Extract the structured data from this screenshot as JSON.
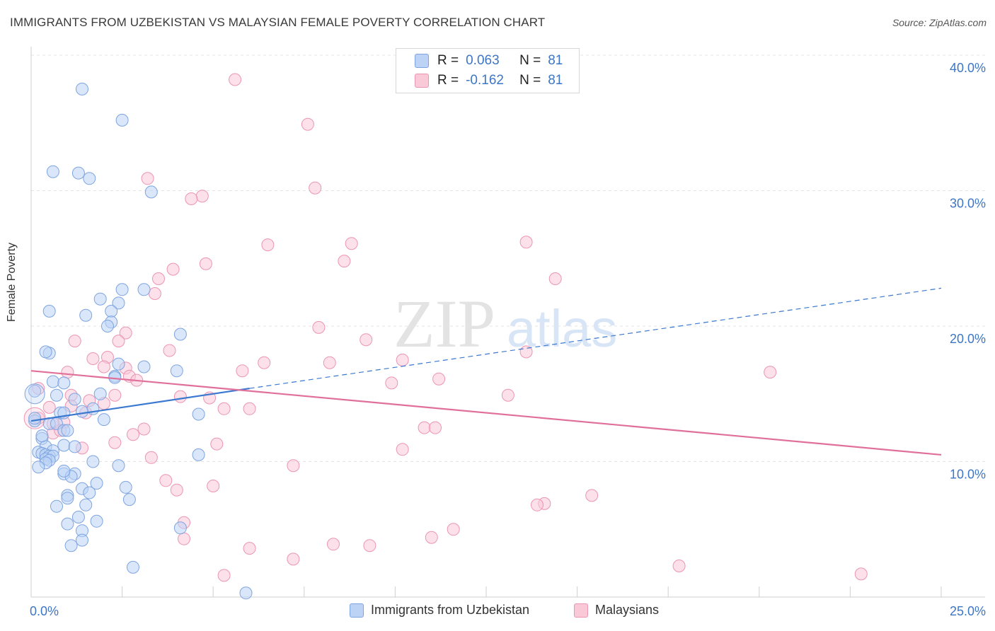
{
  "title": "IMMIGRANTS FROM UZBEKISTAN VS MALAYSIAN FEMALE POVERTY CORRELATION CHART",
  "source": "Source: ZipAtlas.com",
  "watermark": {
    "zip": "ZIP",
    "atlas": "atlas"
  },
  "legend": {
    "r_label": "R =",
    "n_label": "N =",
    "rows": [
      {
        "r_value": "0.063",
        "n_value": "81",
        "fill": "#bcd3f5",
        "stroke": "#7ea4e0"
      },
      {
        "r_value": "-0.162",
        "n_value": "81",
        "fill": "#f9c9d8",
        "stroke": "#eb95b3"
      }
    ]
  },
  "chart_data": {
    "type": "scatter",
    "ylabel": "Female Poverty",
    "xlim": [
      0,
      25
    ],
    "ylim": [
      0,
      40
    ],
    "x_tick_labels": [
      "0.0%",
      "25.0%"
    ],
    "y_ticks": [
      10,
      20,
      30,
      40
    ],
    "y_tick_labels": [
      "10.0%",
      "20.0%",
      "30.0%",
      "40.0%"
    ],
    "grid": true,
    "colors": {
      "blue": "#7ea4e0",
      "blue_fill": "#bcd3f5",
      "blue_line": "#3b78d0",
      "pink": "#eb95b3",
      "pink_fill": "#f9c9d8",
      "pink_line": "#e0709a",
      "axis_text": "#3d76c5"
    },
    "series": [
      {
        "name": "Immigrants from Uzbekistan",
        "color": "#7ea4e0",
        "trend": {
          "x0": 0,
          "y0": 13.0,
          "x1": 6.0,
          "y1": 15.4,
          "x_end": 25,
          "y_end": 22.8
        },
        "points": [
          [
            1.4,
            37.5
          ],
          [
            2.5,
            35.2
          ],
          [
            0.6,
            31.4
          ],
          [
            1.3,
            31.3
          ],
          [
            1.6,
            30.9
          ],
          [
            3.3,
            29.9
          ],
          [
            0.1,
            15.2
          ],
          [
            0.5,
            18.0
          ],
          [
            0.4,
            18.1
          ],
          [
            1.9,
            22.0
          ],
          [
            2.5,
            22.7
          ],
          [
            3.1,
            22.7
          ],
          [
            2.4,
            21.7
          ],
          [
            0.5,
            21.1
          ],
          [
            2.2,
            21.1
          ],
          [
            1.5,
            20.8
          ],
          [
            2.2,
            20.3
          ],
          [
            2.1,
            20.0
          ],
          [
            4.1,
            19.4
          ],
          [
            2.4,
            17.2
          ],
          [
            3.1,
            17.0
          ],
          [
            4.0,
            16.7
          ],
          [
            2.3,
            16.3
          ],
          [
            0.6,
            15.9
          ],
          [
            0.9,
            15.8
          ],
          [
            1.9,
            15.0
          ],
          [
            0.7,
            14.9
          ],
          [
            1.2,
            14.6
          ],
          [
            1.7,
            13.9
          ],
          [
            1.4,
            13.7
          ],
          [
            0.8,
            13.6
          ],
          [
            4.6,
            13.5
          ],
          [
            0.9,
            13.6
          ],
          [
            2.0,
            13.1
          ],
          [
            0.1,
            13.0
          ],
          [
            0.5,
            12.8
          ],
          [
            0.7,
            12.8
          ],
          [
            0.9,
            12.3
          ],
          [
            1.0,
            12.3
          ],
          [
            0.3,
            11.7
          ],
          [
            0.4,
            11.1
          ],
          [
            0.9,
            11.2
          ],
          [
            1.2,
            11.1
          ],
          [
            0.6,
            10.8
          ],
          [
            0.2,
            10.7
          ],
          [
            0.3,
            10.6
          ],
          [
            0.4,
            10.5
          ],
          [
            0.5,
            10.4
          ],
          [
            0.6,
            10.4
          ],
          [
            0.4,
            10.2
          ],
          [
            0.5,
            10.1
          ],
          [
            0.4,
            9.9
          ],
          [
            4.6,
            10.5
          ],
          [
            1.7,
            10.0
          ],
          [
            0.2,
            9.6
          ],
          [
            2.4,
            9.7
          ],
          [
            0.9,
            9.1
          ],
          [
            1.2,
            9.1
          ],
          [
            1.1,
            8.9
          ],
          [
            0.9,
            9.3
          ],
          [
            1.8,
            8.4
          ],
          [
            2.6,
            8.1
          ],
          [
            1.4,
            8.0
          ],
          [
            1.6,
            7.7
          ],
          [
            1.0,
            7.5
          ],
          [
            1.0,
            7.3
          ],
          [
            2.7,
            7.2
          ],
          [
            0.7,
            6.7
          ],
          [
            1.5,
            6.8
          ],
          [
            1.3,
            5.9
          ],
          [
            1.8,
            5.6
          ],
          [
            1.0,
            5.4
          ],
          [
            4.1,
            5.1
          ],
          [
            1.4,
            4.9
          ],
          [
            1.4,
            4.2
          ],
          [
            1.1,
            3.8
          ],
          [
            2.8,
            2.2
          ],
          [
            5.9,
            0.3
          ],
          [
            0.1,
            13.2
          ],
          [
            0.3,
            11.9
          ],
          [
            2.3,
            16.2
          ]
        ]
      },
      {
        "name": "Malaysians",
        "color": "#eb95b3",
        "trend": {
          "x0": 0,
          "y0": 16.7,
          "x1": 25,
          "y1": 10.5
        },
        "points": [
          [
            5.6,
            38.2
          ],
          [
            7.6,
            34.9
          ],
          [
            3.2,
            30.9
          ],
          [
            7.8,
            30.2
          ],
          [
            4.7,
            29.6
          ],
          [
            4.4,
            29.4
          ],
          [
            6.5,
            26.0
          ],
          [
            8.8,
            26.1
          ],
          [
            13.6,
            26.2
          ],
          [
            8.6,
            24.8
          ],
          [
            4.8,
            24.6
          ],
          [
            3.9,
            24.2
          ],
          [
            14.4,
            23.5
          ],
          [
            3.5,
            23.5
          ],
          [
            3.4,
            22.4
          ],
          [
            7.9,
            19.9
          ],
          [
            2.6,
            19.5
          ],
          [
            9.2,
            19.0
          ],
          [
            2.4,
            18.9
          ],
          [
            1.2,
            18.9
          ],
          [
            3.8,
            18.2
          ],
          [
            13.6,
            18.1
          ],
          [
            2.1,
            17.7
          ],
          [
            1.7,
            17.6
          ],
          [
            6.4,
            17.3
          ],
          [
            8.2,
            17.3
          ],
          [
            10.2,
            17.5
          ],
          [
            2.0,
            17.0
          ],
          [
            2.6,
            16.9
          ],
          [
            5.8,
            16.7
          ],
          [
            20.3,
            16.6
          ],
          [
            2.7,
            16.3
          ],
          [
            2.9,
            16.0
          ],
          [
            11.2,
            16.1
          ],
          [
            9.9,
            15.8
          ],
          [
            0.2,
            15.4
          ],
          [
            13.1,
            14.9
          ],
          [
            4.1,
            14.8
          ],
          [
            1.1,
            14.9
          ],
          [
            4.9,
            14.7
          ],
          [
            1.6,
            14.5
          ],
          [
            2.3,
            14.9
          ],
          [
            1.1,
            14.1
          ],
          [
            5.3,
            13.9
          ],
          [
            6.0,
            13.9
          ],
          [
            1.5,
            13.6
          ],
          [
            0.2,
            13.2
          ],
          [
            0.9,
            12.9
          ],
          [
            0.6,
            12.8
          ],
          [
            10.8,
            12.5
          ],
          [
            11.1,
            12.5
          ],
          [
            3.1,
            12.4
          ],
          [
            2.8,
            12.0
          ],
          [
            0.6,
            12.1
          ],
          [
            2.3,
            11.4
          ],
          [
            5.1,
            11.3
          ],
          [
            1.4,
            11.0
          ],
          [
            10.2,
            10.9
          ],
          [
            3.3,
            10.3
          ],
          [
            7.2,
            9.7
          ],
          [
            3.7,
            8.6
          ],
          [
            5.0,
            8.2
          ],
          [
            4.0,
            7.9
          ],
          [
            15.4,
            7.5
          ],
          [
            14.1,
            6.9
          ],
          [
            13.9,
            6.8
          ],
          [
            4.2,
            5.5
          ],
          [
            11.6,
            5.0
          ],
          [
            4.2,
            4.3
          ],
          [
            11.0,
            4.4
          ],
          [
            8.3,
            3.9
          ],
          [
            9.3,
            3.8
          ],
          [
            6.0,
            3.6
          ],
          [
            7.2,
            2.8
          ],
          [
            17.8,
            2.3
          ],
          [
            22.8,
            1.7
          ],
          [
            5.3,
            1.6
          ],
          [
            1.0,
            16.6
          ],
          [
            0.5,
            14.0
          ],
          [
            2.0,
            14.3
          ],
          [
            0.8,
            12.3
          ]
        ]
      }
    ]
  }
}
